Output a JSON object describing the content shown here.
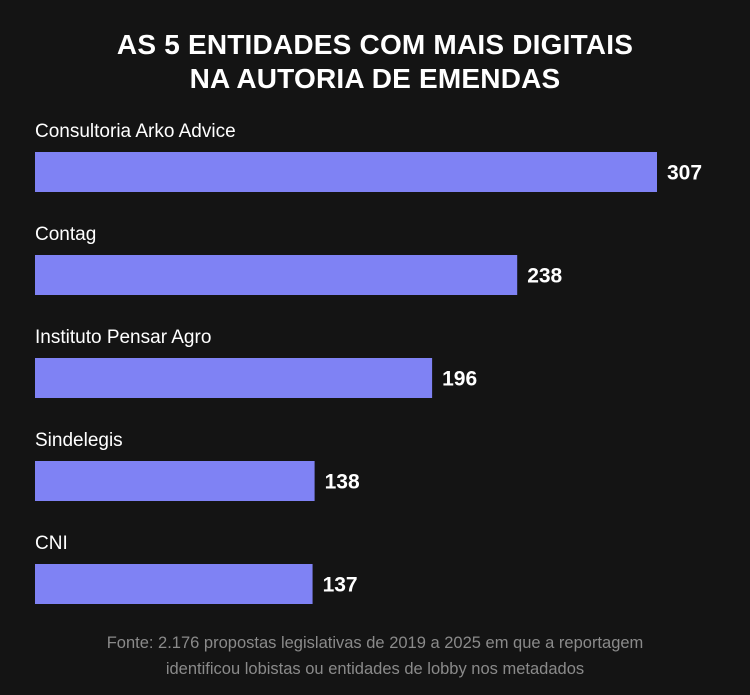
{
  "chart_data": {
    "type": "bar",
    "orientation": "horizontal",
    "title": "AS 5 ENTIDADES COM MAIS DIGITAIS\nNA AUTORIA DE EMENDAS",
    "categories": [
      "Consultoria Arko Advice",
      "Contag",
      "Instituto Pensar Agro",
      "Sindelegis",
      "CNI"
    ],
    "values": [
      307,
      238,
      196,
      138,
      137
    ],
    "xlabel": "",
    "ylabel": "",
    "xlim": [
      0,
      307
    ],
    "grid": false,
    "bar_color": "#7f82f4",
    "background": "#141414",
    "note": "Fonte: 2.176 propostas legislativas de 2019 a 2025 em que a reportagem\nidentificou lobistas ou entidades de lobby nos metadados"
  }
}
